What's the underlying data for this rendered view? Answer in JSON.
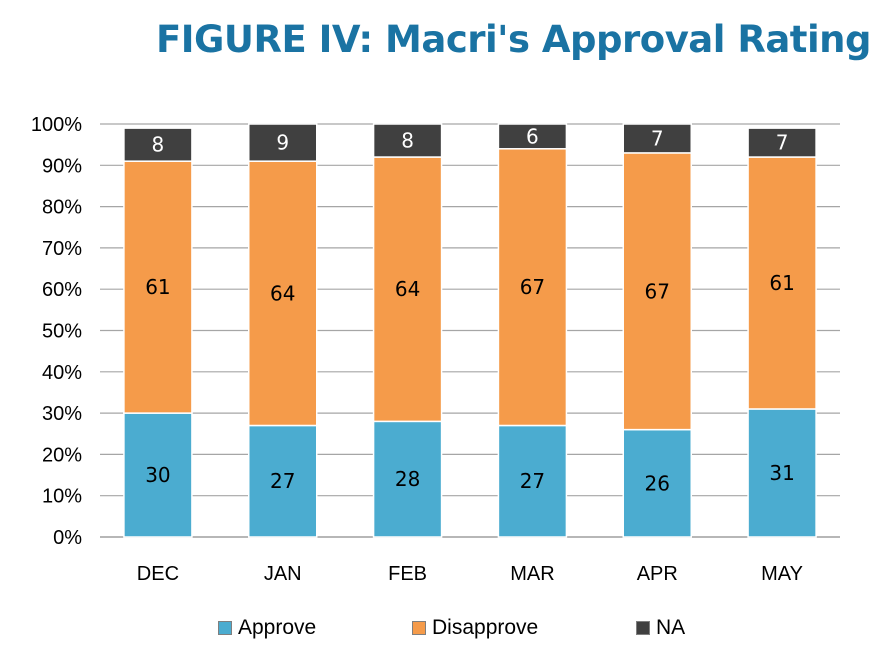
{
  "chart_data": {
    "type": "bar",
    "stacked": true,
    "title": "FIGURE IV: Macri's Approval Rating",
    "categories": [
      "DEC",
      "JAN",
      "FEB",
      "MAR",
      "APR",
      "MAY"
    ],
    "series": [
      {
        "name": "Approve",
        "color": "#4bacd0",
        "values": [
          30,
          27,
          28,
          27,
          26,
          31
        ]
      },
      {
        "name": "Disapprove",
        "color": "#f59b4a",
        "values": [
          61,
          64,
          64,
          67,
          67,
          61
        ]
      },
      {
        "name": "NA",
        "color": "#404040",
        "values": [
          8,
          9,
          8,
          6,
          7,
          7
        ]
      }
    ],
    "y_ticks": [
      "0%",
      "10%",
      "20%",
      "30%",
      "40%",
      "50%",
      "60%",
      "70%",
      "80%",
      "90%",
      "100%"
    ],
    "ylim": [
      0,
      100
    ],
    "xlabel": "",
    "ylabel": "",
    "grid": true,
    "legend_position": "bottom",
    "label_colors": {
      "Approve": "#000000",
      "Disapprove": "#000000",
      "NA": "#ffffff"
    }
  }
}
